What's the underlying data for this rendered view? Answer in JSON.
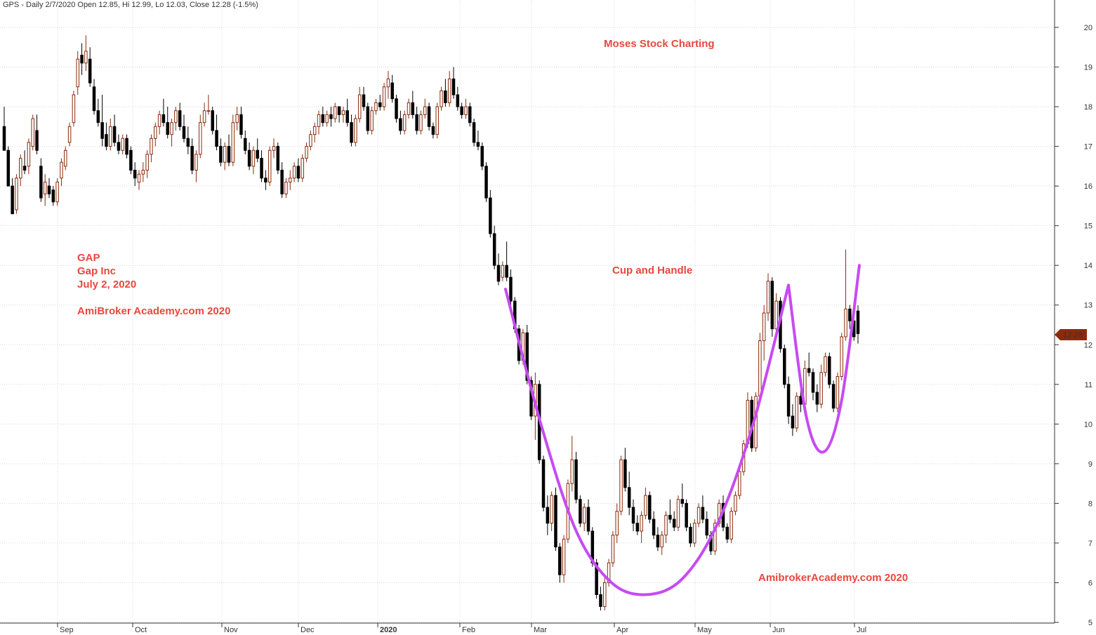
{
  "header": "GPS - Daily 2/7/2020 Open 12.85, Hi 12.99, Lo 12.03, Close 12.28 (-1.5%)",
  "annotations": {
    "site_title": "Moses Stock Charting",
    "symbol": "GAP",
    "company": "Gap Inc",
    "date": "July 2, 2020",
    "credit_left": "AmiBroker Academy.com  2020",
    "pattern": "Cup and Handle",
    "credit_bottom": "AmibrokerAcademy.com 2020"
  },
  "chart_data": {
    "type": "candlestick",
    "ylim": [
      5,
      20.5
    ],
    "yticks": [
      "5",
      "6",
      "7",
      "8",
      "9",
      "10",
      "11",
      "12",
      "13",
      "14",
      "15",
      "16",
      "17",
      "18",
      "19",
      "20"
    ],
    "months": [
      "Sep",
      "Oct",
      "Nov",
      "Dec",
      "2020",
      "Feb",
      "Mar",
      "Apr",
      "May",
      "Jun",
      "Jul"
    ],
    "last_price": "12.28",
    "colors": {
      "up": "#8b2b0b",
      "down": "#000000",
      "pattern": "#c64bf2",
      "grid": "#d8d8d8",
      "annotation": "#e8473d",
      "price_tag": "#8b2b0b"
    },
    "grid": true,
    "pattern_curves": [
      {
        "name": "cup",
        "points": [
          [
            0,
            13.4
          ],
          [
            1,
            10.0
          ],
          [
            2,
            7.3
          ],
          [
            3,
            6.0
          ],
          [
            4,
            5.7
          ],
          [
            5,
            6.1
          ],
          [
            6,
            7.5
          ],
          [
            7,
            10.0
          ],
          [
            8,
            13.5
          ]
        ]
      },
      {
        "name": "handle",
        "points": [
          [
            0,
            13.5
          ],
          [
            1,
            10.2
          ],
          [
            2,
            9.3
          ],
          [
            3,
            10.6
          ],
          [
            4,
            14.0
          ]
        ]
      }
    ],
    "candles": [
      [
        17.5,
        18.0,
        16.9,
        16.9
      ],
      [
        16.9,
        17.0,
        16.0,
        16.0
      ],
      [
        16.0,
        16.2,
        15.3,
        15.3
      ],
      [
        15.4,
        16.3,
        15.3,
        16.2
      ],
      [
        16.2,
        16.8,
        16.0,
        16.7
      ],
      [
        16.5,
        16.9,
        16.3,
        16.4
      ],
      [
        16.5,
        17.2,
        16.3,
        17.1
      ],
      [
        17.0,
        17.8,
        16.9,
        17.7
      ],
      [
        17.4,
        17.8,
        16.8,
        16.9
      ],
      [
        16.5,
        16.7,
        15.6,
        15.7
      ],
      [
        15.8,
        16.3,
        15.5,
        16.1
      ],
      [
        16.0,
        16.2,
        15.7,
        15.8
      ],
      [
        15.9,
        16.0,
        15.5,
        15.6
      ],
      [
        15.6,
        16.2,
        15.5,
        16.1
      ],
      [
        16.2,
        16.7,
        16.0,
        16.6
      ],
      [
        16.5,
        17.0,
        16.4,
        16.9
      ],
      [
        17.1,
        17.6,
        17.0,
        17.5
      ],
      [
        17.6,
        18.4,
        17.5,
        18.3
      ],
      [
        18.5,
        19.4,
        18.3,
        19.2
      ],
      [
        19.3,
        19.6,
        18.8,
        19.1
      ],
      [
        19.1,
        19.8,
        18.9,
        19.4
      ],
      [
        19.2,
        19.5,
        18.5,
        18.6
      ],
      [
        18.5,
        18.7,
        17.8,
        17.9
      ],
      [
        17.9,
        18.2,
        17.5,
        17.6
      ],
      [
        17.6,
        18.3,
        17.0,
        17.2
      ],
      [
        17.3,
        17.6,
        16.9,
        17.0
      ],
      [
        17.0,
        17.7,
        16.9,
        17.5
      ],
      [
        17.5,
        17.8,
        17.0,
        17.1
      ],
      [
        17.1,
        17.3,
        16.8,
        16.9
      ],
      [
        16.9,
        17.3,
        16.8,
        17.2
      ],
      [
        17.2,
        17.3,
        16.7,
        16.8
      ],
      [
        16.9,
        17.0,
        16.3,
        16.4
      ],
      [
        16.4,
        16.6,
        16.0,
        16.2
      ],
      [
        16.1,
        16.4,
        15.9,
        16.3
      ],
      [
        16.3,
        16.6,
        16.1,
        16.4
      ],
      [
        16.4,
        16.9,
        16.2,
        16.8
      ],
      [
        16.8,
        17.3,
        16.6,
        17.2
      ],
      [
        17.2,
        17.6,
        17.0,
        17.5
      ],
      [
        17.5,
        17.9,
        17.3,
        17.8
      ],
      [
        17.8,
        18.2,
        17.5,
        17.6
      ],
      [
        17.6,
        18.0,
        17.2,
        17.3
      ],
      [
        17.3,
        17.7,
        17.0,
        17.6
      ],
      [
        17.6,
        18.0,
        17.4,
        17.9
      ],
      [
        17.9,
        18.1,
        17.4,
        17.5
      ],
      [
        17.5,
        17.8,
        17.1,
        17.2
      ],
      [
        17.2,
        17.5,
        16.8,
        17.0
      ],
      [
        17.0,
        17.2,
        16.3,
        16.4
      ],
      [
        16.4,
        16.9,
        16.1,
        16.8
      ],
      [
        16.8,
        17.8,
        16.7,
        17.6
      ],
      [
        17.6,
        18.1,
        17.5,
        17.9
      ],
      [
        17.9,
        18.3,
        17.8,
        17.9
      ],
      [
        17.9,
        18.0,
        17.3,
        17.4
      ],
      [
        17.4,
        17.8,
        16.9,
        17.0
      ],
      [
        17.0,
        17.2,
        16.5,
        16.6
      ],
      [
        16.6,
        17.1,
        16.4,
        17.0
      ],
      [
        17.0,
        17.3,
        16.5,
        16.6
      ],
      [
        16.6,
        17.8,
        16.5,
        17.6
      ],
      [
        17.6,
        18.0,
        17.4,
        17.8
      ],
      [
        17.8,
        18.0,
        17.2,
        17.3
      ],
      [
        17.2,
        17.4,
        16.8,
        16.9
      ],
      [
        16.9,
        17.1,
        16.4,
        16.5
      ],
      [
        16.5,
        17.0,
        16.3,
        16.9
      ],
      [
        16.9,
        17.2,
        16.6,
        16.7
      ],
      [
        16.7,
        16.9,
        16.1,
        16.2
      ],
      [
        16.2,
        16.4,
        15.9,
        16.1
      ],
      [
        16.1,
        17.0,
        16.0,
        16.9
      ],
      [
        16.9,
        17.2,
        16.7,
        17.0
      ],
      [
        17.0,
        17.1,
        16.3,
        16.4
      ],
      [
        16.4,
        16.6,
        15.7,
        15.8
      ],
      [
        15.8,
        16.2,
        15.7,
        16.1
      ],
      [
        16.1,
        16.4,
        15.9,
        16.2
      ],
      [
        16.2,
        16.6,
        16.1,
        16.5
      ],
      [
        16.5,
        16.7,
        16.1,
        16.2
      ],
      [
        16.2,
        16.8,
        16.1,
        16.7
      ],
      [
        16.7,
        17.1,
        16.6,
        17.0
      ],
      [
        17.0,
        17.4,
        16.9,
        17.3
      ],
      [
        17.3,
        17.6,
        17.1,
        17.5
      ],
      [
        17.5,
        17.9,
        17.3,
        17.8
      ],
      [
        17.8,
        18.0,
        17.5,
        17.6
      ],
      [
        17.6,
        17.9,
        17.5,
        17.8
      ],
      [
        17.8,
        18.0,
        17.5,
        17.7
      ],
      [
        17.7,
        18.1,
        17.6,
        18.0
      ],
      [
        18.0,
        18.0,
        17.6,
        17.8
      ],
      [
        17.8,
        18.0,
        17.6,
        17.9
      ],
      [
        17.9,
        18.2,
        17.5,
        17.6
      ],
      [
        17.6,
        17.8,
        17.0,
        17.1
      ],
      [
        17.1,
        17.8,
        17.0,
        17.7
      ],
      [
        17.7,
        18.5,
        17.6,
        18.3
      ],
      [
        18.3,
        18.5,
        17.9,
        18.0
      ],
      [
        18.0,
        18.1,
        17.3,
        17.4
      ],
      [
        17.4,
        18.0,
        17.3,
        17.9
      ],
      [
        17.9,
        18.2,
        17.8,
        18.1
      ],
      [
        18.1,
        18.3,
        17.9,
        18.0
      ],
      [
        18.0,
        18.6,
        17.9,
        18.5
      ],
      [
        18.5,
        18.9,
        18.2,
        18.7
      ],
      [
        18.6,
        18.8,
        18.1,
        18.2
      ],
      [
        18.2,
        18.3,
        17.6,
        17.7
      ],
      [
        17.7,
        17.9,
        17.3,
        17.4
      ],
      [
        17.4,
        17.9,
        17.3,
        17.8
      ],
      [
        17.8,
        18.2,
        17.7,
        18.1
      ],
      [
        18.1,
        18.4,
        17.7,
        17.8
      ],
      [
        17.8,
        18.0,
        17.3,
        17.4
      ],
      [
        17.4,
        17.9,
        17.3,
        17.8
      ],
      [
        17.8,
        18.2,
        17.7,
        18.0
      ],
      [
        18.0,
        18.1,
        17.4,
        17.5
      ],
      [
        17.5,
        17.6,
        17.2,
        17.3
      ],
      [
        17.3,
        18.1,
        17.2,
        18.0
      ],
      [
        18.0,
        18.5,
        17.9,
        18.4
      ],
      [
        18.4,
        18.7,
        18.0,
        18.1
      ],
      [
        18.1,
        18.9,
        18.0,
        18.7
      ],
      [
        18.7,
        19.0,
        18.2,
        18.3
      ],
      [
        18.3,
        18.5,
        17.9,
        18.0
      ],
      [
        18.0,
        18.1,
        17.7,
        17.8
      ],
      [
        17.8,
        18.2,
        17.7,
        18.0
      ],
      [
        18.0,
        18.1,
        17.5,
        17.6
      ],
      [
        17.6,
        17.7,
        17.0,
        17.1
      ],
      [
        17.1,
        17.4,
        16.9,
        17.0
      ],
      [
        17.0,
        17.1,
        16.4,
        16.5
      ],
      [
        16.5,
        16.6,
        15.6,
        15.7
      ],
      [
        15.7,
        15.9,
        14.7,
        14.8
      ],
      [
        14.8,
        15.0,
        13.9,
        14.0
      ],
      [
        14.0,
        14.3,
        13.5,
        13.6
      ],
      [
        13.7,
        14.1,
        13.6,
        14.0
      ],
      [
        14.0,
        14.6,
        13.6,
        13.7
      ],
      [
        13.7,
        13.9,
        13.0,
        13.1
      ],
      [
        13.1,
        13.2,
        12.3,
        12.4
      ],
      [
        12.4,
        12.5,
        11.5,
        11.6
      ],
      [
        11.6,
        12.4,
        11.5,
        12.3
      ],
      [
        12.3,
        12.5,
        11.0,
        11.1
      ],
      [
        11.1,
        11.2,
        10.1,
        10.2
      ],
      [
        10.2,
        11.3,
        9.6,
        11.0
      ],
      [
        11.0,
        11.1,
        9.0,
        9.1
      ],
      [
        9.1,
        9.2,
        7.8,
        7.9
      ],
      [
        7.9,
        8.2,
        7.2,
        7.5
      ],
      [
        7.5,
        8.3,
        7.3,
        8.2
      ],
      [
        8.2,
        8.4,
        6.8,
        6.9
      ],
      [
        6.9,
        7.0,
        6.0,
        6.2
      ],
      [
        6.2,
        7.2,
        6.0,
        7.1
      ],
      [
        7.1,
        8.6,
        7.0,
        8.5
      ],
      [
        8.5,
        9.7,
        8.3,
        9.1
      ],
      [
        9.1,
        9.3,
        8.0,
        8.1
      ],
      [
        8.1,
        8.2,
        7.4,
        7.5
      ],
      [
        7.5,
        8.0,
        7.3,
        7.9
      ],
      [
        7.9,
        8.1,
        7.2,
        7.3
      ],
      [
        7.3,
        7.4,
        6.4,
        6.5
      ],
      [
        6.5,
        6.6,
        5.6,
        5.7
      ],
      [
        5.7,
        5.9,
        5.3,
        5.4
      ],
      [
        5.4,
        6.2,
        5.3,
        6.0
      ],
      [
        6.0,
        6.6,
        5.9,
        6.5
      ],
      [
        6.5,
        7.3,
        6.4,
        7.2
      ],
      [
        7.2,
        8.0,
        7.0,
        7.8
      ],
      [
        7.8,
        9.2,
        7.7,
        9.1
      ],
      [
        9.1,
        9.4,
        8.3,
        8.4
      ],
      [
        8.4,
        8.8,
        7.7,
        7.9
      ],
      [
        7.9,
        8.1,
        7.3,
        7.5
      ],
      [
        7.5,
        7.7,
        7.2,
        7.3
      ],
      [
        7.3,
        7.8,
        7.0,
        7.7
      ],
      [
        7.7,
        8.4,
        7.6,
        8.2
      ],
      [
        8.2,
        8.3,
        7.5,
        7.6
      ],
      [
        7.6,
        7.8,
        7.1,
        7.2
      ],
      [
        7.2,
        7.4,
        6.8,
        6.9
      ],
      [
        6.9,
        7.3,
        6.7,
        7.2
      ],
      [
        7.2,
        7.8,
        7.0,
        7.7
      ],
      [
        7.7,
        8.1,
        7.5,
        7.6
      ],
      [
        7.6,
        7.8,
        7.3,
        7.4
      ],
      [
        7.4,
        8.2,
        7.3,
        8.1
      ],
      [
        8.1,
        8.5,
        7.9,
        8.0
      ],
      [
        8.0,
        8.1,
        7.3,
        7.4
      ],
      [
        7.4,
        7.5,
        6.9,
        7.0
      ],
      [
        7.0,
        7.6,
        6.9,
        7.5
      ],
      [
        7.5,
        8.0,
        7.4,
        7.9
      ],
      [
        7.9,
        8.2,
        7.5,
        7.6
      ],
      [
        7.6,
        7.8,
        7.1,
        7.2
      ],
      [
        7.2,
        7.3,
        6.7,
        6.8
      ],
      [
        6.8,
        7.6,
        6.7,
        7.5
      ],
      [
        7.5,
        8.1,
        7.4,
        8.0
      ],
      [
        8.0,
        8.2,
        7.3,
        7.4
      ],
      [
        7.4,
        7.5,
        7.0,
        7.1
      ],
      [
        7.1,
        7.9,
        7.0,
        7.8
      ],
      [
        7.8,
        8.3,
        7.7,
        8.2
      ],
      [
        8.2,
        8.9,
        8.1,
        8.8
      ],
      [
        8.8,
        9.6,
        8.7,
        9.5
      ],
      [
        9.5,
        10.8,
        9.4,
        10.6
      ],
      [
        10.6,
        10.7,
        9.3,
        9.4
      ],
      [
        9.4,
        10.8,
        9.3,
        10.7
      ],
      [
        10.7,
        12.3,
        10.6,
        12.1
      ],
      [
        12.1,
        13.0,
        11.6,
        12.8
      ],
      [
        12.8,
        13.8,
        12.6,
        13.6
      ],
      [
        13.6,
        13.7,
        12.2,
        12.4
      ],
      [
        12.4,
        13.3,
        12.2,
        13.1
      ],
      [
        13.1,
        13.2,
        11.8,
        11.9
      ],
      [
        11.9,
        12.0,
        10.9,
        11.0
      ],
      [
        11.0,
        11.2,
        10.0,
        10.2
      ],
      [
        10.2,
        10.5,
        9.7,
        9.9
      ],
      [
        9.9,
        10.8,
        9.8,
        10.7
      ],
      [
        10.7,
        11.0,
        10.3,
        10.5
      ],
      [
        10.5,
        11.6,
        10.4,
        11.4
      ],
      [
        11.4,
        11.8,
        11.2,
        11.3
      ],
      [
        11.3,
        11.4,
        10.6,
        10.8
      ],
      [
        10.8,
        11.0,
        10.3,
        10.5
      ],
      [
        10.5,
        11.5,
        10.4,
        11.3
      ],
      [
        11.3,
        11.8,
        11.2,
        11.7
      ],
      [
        11.7,
        11.8,
        10.9,
        11.0
      ],
      [
        11.0,
        11.1,
        10.3,
        10.4
      ],
      [
        10.4,
        11.3,
        10.3,
        11.2
      ],
      [
        11.2,
        12.3,
        11.1,
        12.2
      ],
      [
        12.2,
        14.4,
        12.1,
        12.9
      ],
      [
        12.9,
        13.0,
        12.4,
        12.6
      ],
      [
        12.6,
        12.7,
        12.1,
        12.2
      ],
      [
        12.85,
        12.99,
        12.03,
        12.28
      ]
    ]
  }
}
